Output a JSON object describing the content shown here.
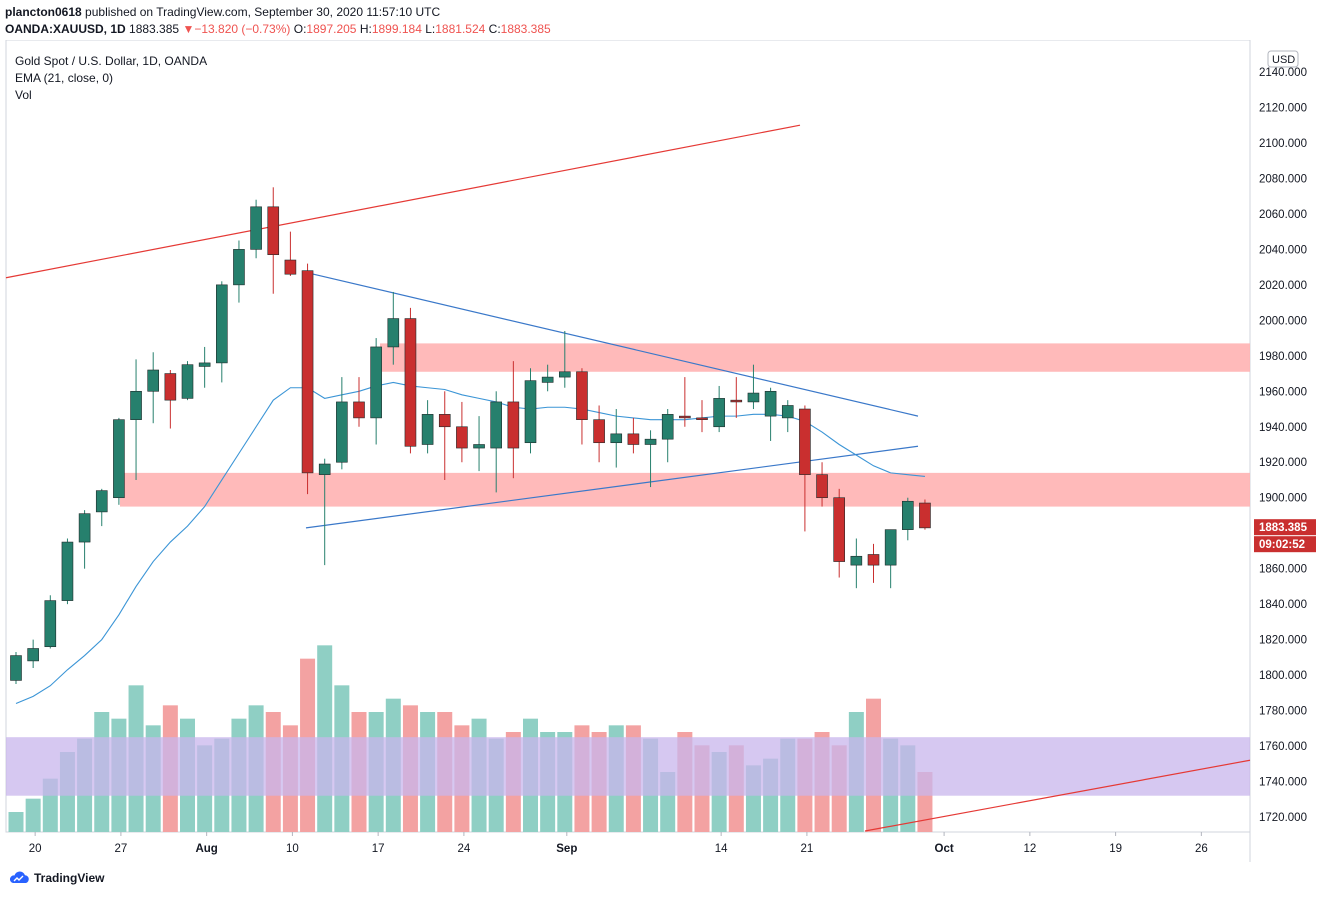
{
  "header": {
    "user": "plancton0618",
    "published": "published on TradingView.com, September 30, 2020 11:57:10 UTC",
    "symbol": "OANDA:XAUUSD, 1D",
    "last": "1883.385",
    "change_arrow": "▼",
    "change": "−13.820 (−0.73%)",
    "o_label": "O:",
    "o": "1897.205",
    "h_label": "H:",
    "h": "1899.184",
    "l_label": "L:",
    "l": "1881.524",
    "c_label": "C:",
    "c": "1883.385"
  },
  "legend": {
    "title": "Gold Spot / U.S. Dollar, 1D, OANDA",
    "ema": "EMA (21, close, 0)",
    "vol": "Vol"
  },
  "brand": {
    "name": "TradingView"
  },
  "chart_data": {
    "type": "candlestick",
    "currency": "USD",
    "price_label": "1883.385",
    "countdown_label": "09:02:52",
    "y_ticks": [
      "2140.000",
      "2120.000",
      "2100.000",
      "2080.000",
      "2060.000",
      "2040.000",
      "2020.000",
      "2000.000",
      "1980.000",
      "1960.000",
      "1940.000",
      "1920.000",
      "1900.000",
      "1860.000",
      "1840.000",
      "1820.000",
      "1800.000",
      "1780.000",
      "1760.000",
      "1740.000",
      "1720.000"
    ],
    "ylim": [
      1712,
      2145
    ],
    "x_ticks": [
      {
        "label": "20",
        "i": 1
      },
      {
        "label": "27",
        "i": 6
      },
      {
        "label": "Aug",
        "i": 11
      },
      {
        "label": "10",
        "i": 16
      },
      {
        "label": "17",
        "i": 21
      },
      {
        "label": "24",
        "i": 26
      },
      {
        "label": "Sep",
        "i": 32
      },
      {
        "label": "14",
        "i": 41
      },
      {
        "label": "21",
        "i": 46
      },
      {
        "label": "Oct",
        "i": 54
      },
      {
        "label": "12",
        "i": 59
      },
      {
        "label": "19",
        "i": 64
      },
      {
        "label": "26",
        "i": 69
      }
    ],
    "colors": {
      "up": "#26806d",
      "down": "#c92f2f",
      "vol_up": "#8fcfc4",
      "vol_down": "#f3a2a2",
      "ema": "#3b95d6",
      "trend_red": "#e53935",
      "trend_blue": "#3a78c9",
      "zone": "#ffb3b3",
      "vol_zone": "#c8b6ec"
    },
    "candles": [
      {
        "o": 1797,
        "h": 1813,
        "l": 1795,
        "c": 1811
      },
      {
        "o": 1808,
        "h": 1820,
        "l": 1804,
        "c": 1815
      },
      {
        "o": 1816,
        "h": 1845,
        "l": 1815,
        "c": 1842
      },
      {
        "o": 1842,
        "h": 1877,
        "l": 1840,
        "c": 1875
      },
      {
        "o": 1875,
        "h": 1893,
        "l": 1860,
        "c": 1891
      },
      {
        "o": 1892,
        "h": 1905,
        "l": 1884,
        "c": 1904
      },
      {
        "o": 1900,
        "h": 1945,
        "l": 1896,
        "c": 1944
      },
      {
        "o": 1944,
        "h": 1978,
        "l": 1910,
        "c": 1960
      },
      {
        "o": 1960,
        "h": 1982,
        "l": 1942,
        "c": 1972
      },
      {
        "o": 1970,
        "h": 1972,
        "l": 1939,
        "c": 1955
      },
      {
        "o": 1956,
        "h": 1977,
        "l": 1955,
        "c": 1975
      },
      {
        "o": 1974,
        "h": 1985,
        "l": 1962,
        "c": 1976
      },
      {
        "o": 1976,
        "h": 2022,
        "l": 1965,
        "c": 2020
      },
      {
        "o": 2020,
        "h": 2045,
        "l": 2010,
        "c": 2040
      },
      {
        "o": 2040,
        "h": 2068,
        "l": 2035,
        "c": 2064
      },
      {
        "o": 2064,
        "h": 2075,
        "l": 2015,
        "c": 2037
      },
      {
        "o": 2034,
        "h": 2050,
        "l": 2025,
        "c": 2026
      },
      {
        "o": 2028,
        "h": 2032,
        "l": 1902,
        "c": 1914
      },
      {
        "o": 1913,
        "h": 1922,
        "l": 1862,
        "c": 1919
      },
      {
        "o": 1920,
        "h": 1968,
        "l": 1916,
        "c": 1954
      },
      {
        "o": 1954,
        "h": 1968,
        "l": 1940,
        "c": 1945
      },
      {
        "o": 1945,
        "h": 1990,
        "l": 1930,
        "c": 1985
      },
      {
        "o": 1985,
        "h": 2016,
        "l": 1975,
        "c": 2001
      },
      {
        "o": 2001,
        "h": 2007,
        "l": 1925,
        "c": 1929
      },
      {
        "o": 1930,
        "h": 1955,
        "l": 1925,
        "c": 1947
      },
      {
        "o": 1947,
        "h": 1960,
        "l": 1910,
        "c": 1940
      },
      {
        "o": 1940,
        "h": 1954,
        "l": 1920,
        "c": 1928
      },
      {
        "o": 1928,
        "h": 1946,
        "l": 1915,
        "c": 1930
      },
      {
        "o": 1928,
        "h": 1960,
        "l": 1903,
        "c": 1954
      },
      {
        "o": 1954,
        "h": 1977,
        "l": 1911,
        "c": 1928
      },
      {
        "o": 1931,
        "h": 1973,
        "l": 1925,
        "c": 1966
      },
      {
        "o": 1965,
        "h": 1975,
        "l": 1960,
        "c": 1968
      },
      {
        "o": 1968,
        "h": 1994,
        "l": 1962,
        "c": 1971
      },
      {
        "o": 1971,
        "h": 1973,
        "l": 1930,
        "c": 1944
      },
      {
        "o": 1944,
        "h": 1952,
        "l": 1920,
        "c": 1931
      },
      {
        "o": 1931,
        "h": 1950,
        "l": 1917,
        "c": 1936
      },
      {
        "o": 1936,
        "h": 1945,
        "l": 1925,
        "c": 1930
      },
      {
        "o": 1930,
        "h": 1938,
        "l": 1906,
        "c": 1933
      },
      {
        "o": 1933,
        "h": 1950,
        "l": 1920,
        "c": 1947
      },
      {
        "o": 1946,
        "h": 1968,
        "l": 1940,
        "c": 1945
      },
      {
        "o": 1945,
        "h": 1955,
        "l": 1937,
        "c": 1944
      },
      {
        "o": 1940,
        "h": 1963,
        "l": 1937,
        "c": 1956
      },
      {
        "o": 1955,
        "h": 1968,
        "l": 1945,
        "c": 1954
      },
      {
        "o": 1954,
        "h": 1975,
        "l": 1950,
        "c": 1959
      },
      {
        "o": 1946,
        "h": 1962,
        "l": 1932,
        "c": 1960
      },
      {
        "o": 1945,
        "h": 1955,
        "l": 1937,
        "c": 1952
      },
      {
        "o": 1950,
        "h": 1952,
        "l": 1881,
        "c": 1913
      },
      {
        "o": 1913,
        "h": 1920,
        "l": 1895,
        "c": 1900
      },
      {
        "o": 1900,
        "h": 1905,
        "l": 1855,
        "c": 1864
      },
      {
        "o": 1862,
        "h": 1877,
        "l": 1849,
        "c": 1867
      },
      {
        "o": 1868,
        "h": 1874,
        "l": 1852,
        "c": 1862
      },
      {
        "o": 1862,
        "h": 1882,
        "l": 1849,
        "c": 1882
      },
      {
        "o": 1882,
        "h": 1900,
        "l": 1876,
        "c": 1898
      },
      {
        "o": 1897,
        "h": 1899,
        "l": 1882,
        "c": 1883
      }
    ],
    "ema": [
      1784,
      1788,
      1794,
      1803,
      1811,
      1820,
      1834,
      1850,
      1864,
      1875,
      1884,
      1895,
      1910,
      1925,
      1940,
      1955,
      1962,
      1962,
      1956,
      1958,
      1960,
      1963,
      1965,
      1963,
      1962,
      1961,
      1958,
      1956,
      1954,
      1951,
      1950,
      1951,
      1951,
      1950,
      1948,
      1946,
      1945,
      1944,
      1944,
      1944,
      1945,
      1946,
      1946,
      1947,
      1947,
      1946,
      1943,
      1937,
      1930,
      1924,
      1918,
      1914,
      1913,
      1912
    ],
    "volume": [
      3,
      5,
      8,
      12,
      14,
      18,
      17,
      22,
      16,
      19,
      17,
      13,
      14,
      17,
      19,
      18,
      16,
      26,
      28,
      22,
      18,
      18,
      20,
      19,
      18,
      18,
      16,
      17,
      14,
      15,
      17,
      15,
      15,
      16,
      15,
      16,
      16,
      14,
      9,
      15,
      13,
      12,
      13,
      10,
      11,
      14,
      14,
      15,
      13,
      18,
      20,
      14,
      13,
      9
    ],
    "vol_scale_max": 30,
    "red_zones": [
      [
        1971,
        1987
      ],
      [
        1895,
        1914
      ]
    ],
    "vol_zone_price": [
      1732,
      1765
    ]
  }
}
